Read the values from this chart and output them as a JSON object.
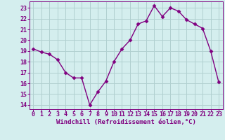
{
  "x": [
    0,
    1,
    2,
    3,
    4,
    5,
    6,
    7,
    8,
    9,
    10,
    11,
    12,
    13,
    14,
    15,
    16,
    17,
    18,
    19,
    20,
    21,
    22,
    23
  ],
  "y": [
    19.2,
    18.9,
    18.7,
    18.2,
    17.0,
    16.5,
    16.5,
    14.0,
    15.2,
    16.2,
    18.0,
    19.2,
    20.0,
    21.5,
    21.8,
    23.2,
    22.2,
    23.0,
    22.7,
    21.9,
    21.5,
    21.1,
    19.0,
    16.1
  ],
  "line_color": "#800080",
  "marker": "D",
  "markersize": 2.5,
  "linewidth": 1.0,
  "bg_color": "#d4eeee",
  "grid_color": "#b0d0d0",
  "xlabel": "Windchill (Refroidissement éolien,°C)",
  "xlabel_fontsize": 6.5,
  "xlabel_color": "#800080",
  "tick_color": "#800080",
  "tick_fontsize": 6.0,
  "ytick_labels": [
    "14",
    "15",
    "16",
    "17",
    "18",
    "19",
    "20",
    "21",
    "22",
    "23"
  ],
  "ytick_values": [
    14,
    15,
    16,
    17,
    18,
    19,
    20,
    21,
    22,
    23
  ],
  "ylim": [
    13.6,
    23.6
  ],
  "xlim": [
    -0.5,
    23.5
  ],
  "xtick_values": [
    0,
    1,
    2,
    3,
    4,
    5,
    6,
    7,
    8,
    9,
    10,
    11,
    12,
    13,
    14,
    15,
    16,
    17,
    18,
    19,
    20,
    21,
    22,
    23
  ]
}
